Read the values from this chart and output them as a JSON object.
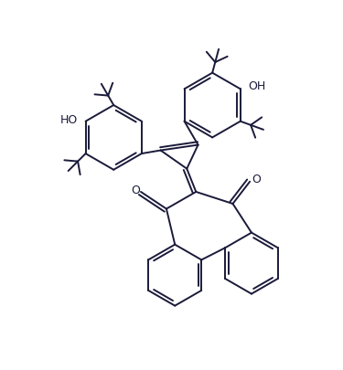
{
  "bg_color": "#ffffff",
  "line_color": "#1a1a3a",
  "lw": 1.4,
  "figsize": [
    3.75,
    4.05
  ],
  "dpi": 100,
  "xlim": [
    0,
    10
  ],
  "ylim": [
    0,
    10.8
  ]
}
